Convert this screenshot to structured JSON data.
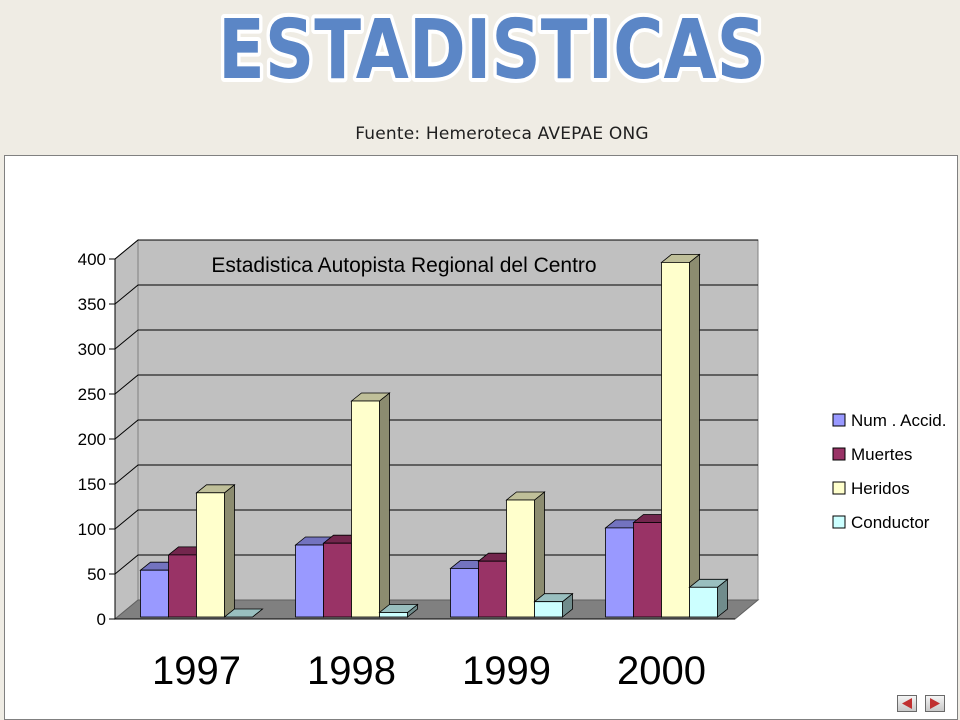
{
  "slide": {
    "title": "ESTADISTICAS",
    "source": "Fuente: Hemeroteca  AVEPAE ONG"
  },
  "colors": {
    "title_fill": "#5b86c6",
    "title_stroke": "#ffffff",
    "wall": "#c0c0c0",
    "floor": "#808080",
    "nav_arrow": "#c03030"
  },
  "chart_data": {
    "type": "bar",
    "title": "Estadistica Autopista Regional del Centro",
    "categories": [
      "1997",
      "1998",
      "1999",
      "2000"
    ],
    "series": [
      {
        "name": "Num . Accid.",
        "values": [
          52,
          80,
          54,
          99
        ],
        "color": "#9999ff"
      },
      {
        "name": "Muertes",
        "values": [
          69,
          82,
          62,
          105
        ],
        "color": "#993366"
      },
      {
        "name": "Heridos",
        "values": [
          138,
          240,
          130,
          394
        ],
        "color": "#ffffcc"
      },
      {
        "name": "Conductor",
        "values": [
          0,
          5,
          17,
          33
        ],
        "color": "#ccffff"
      }
    ],
    "ylim": [
      0,
      400
    ],
    "yticks": [
      0,
      50,
      100,
      150,
      200,
      250,
      300,
      350,
      400
    ],
    "grid": true,
    "legend": "right",
    "style": "3d-column"
  },
  "nav": {
    "prev_icon": "triangle-left-icon",
    "next_icon": "triangle-right-icon"
  }
}
